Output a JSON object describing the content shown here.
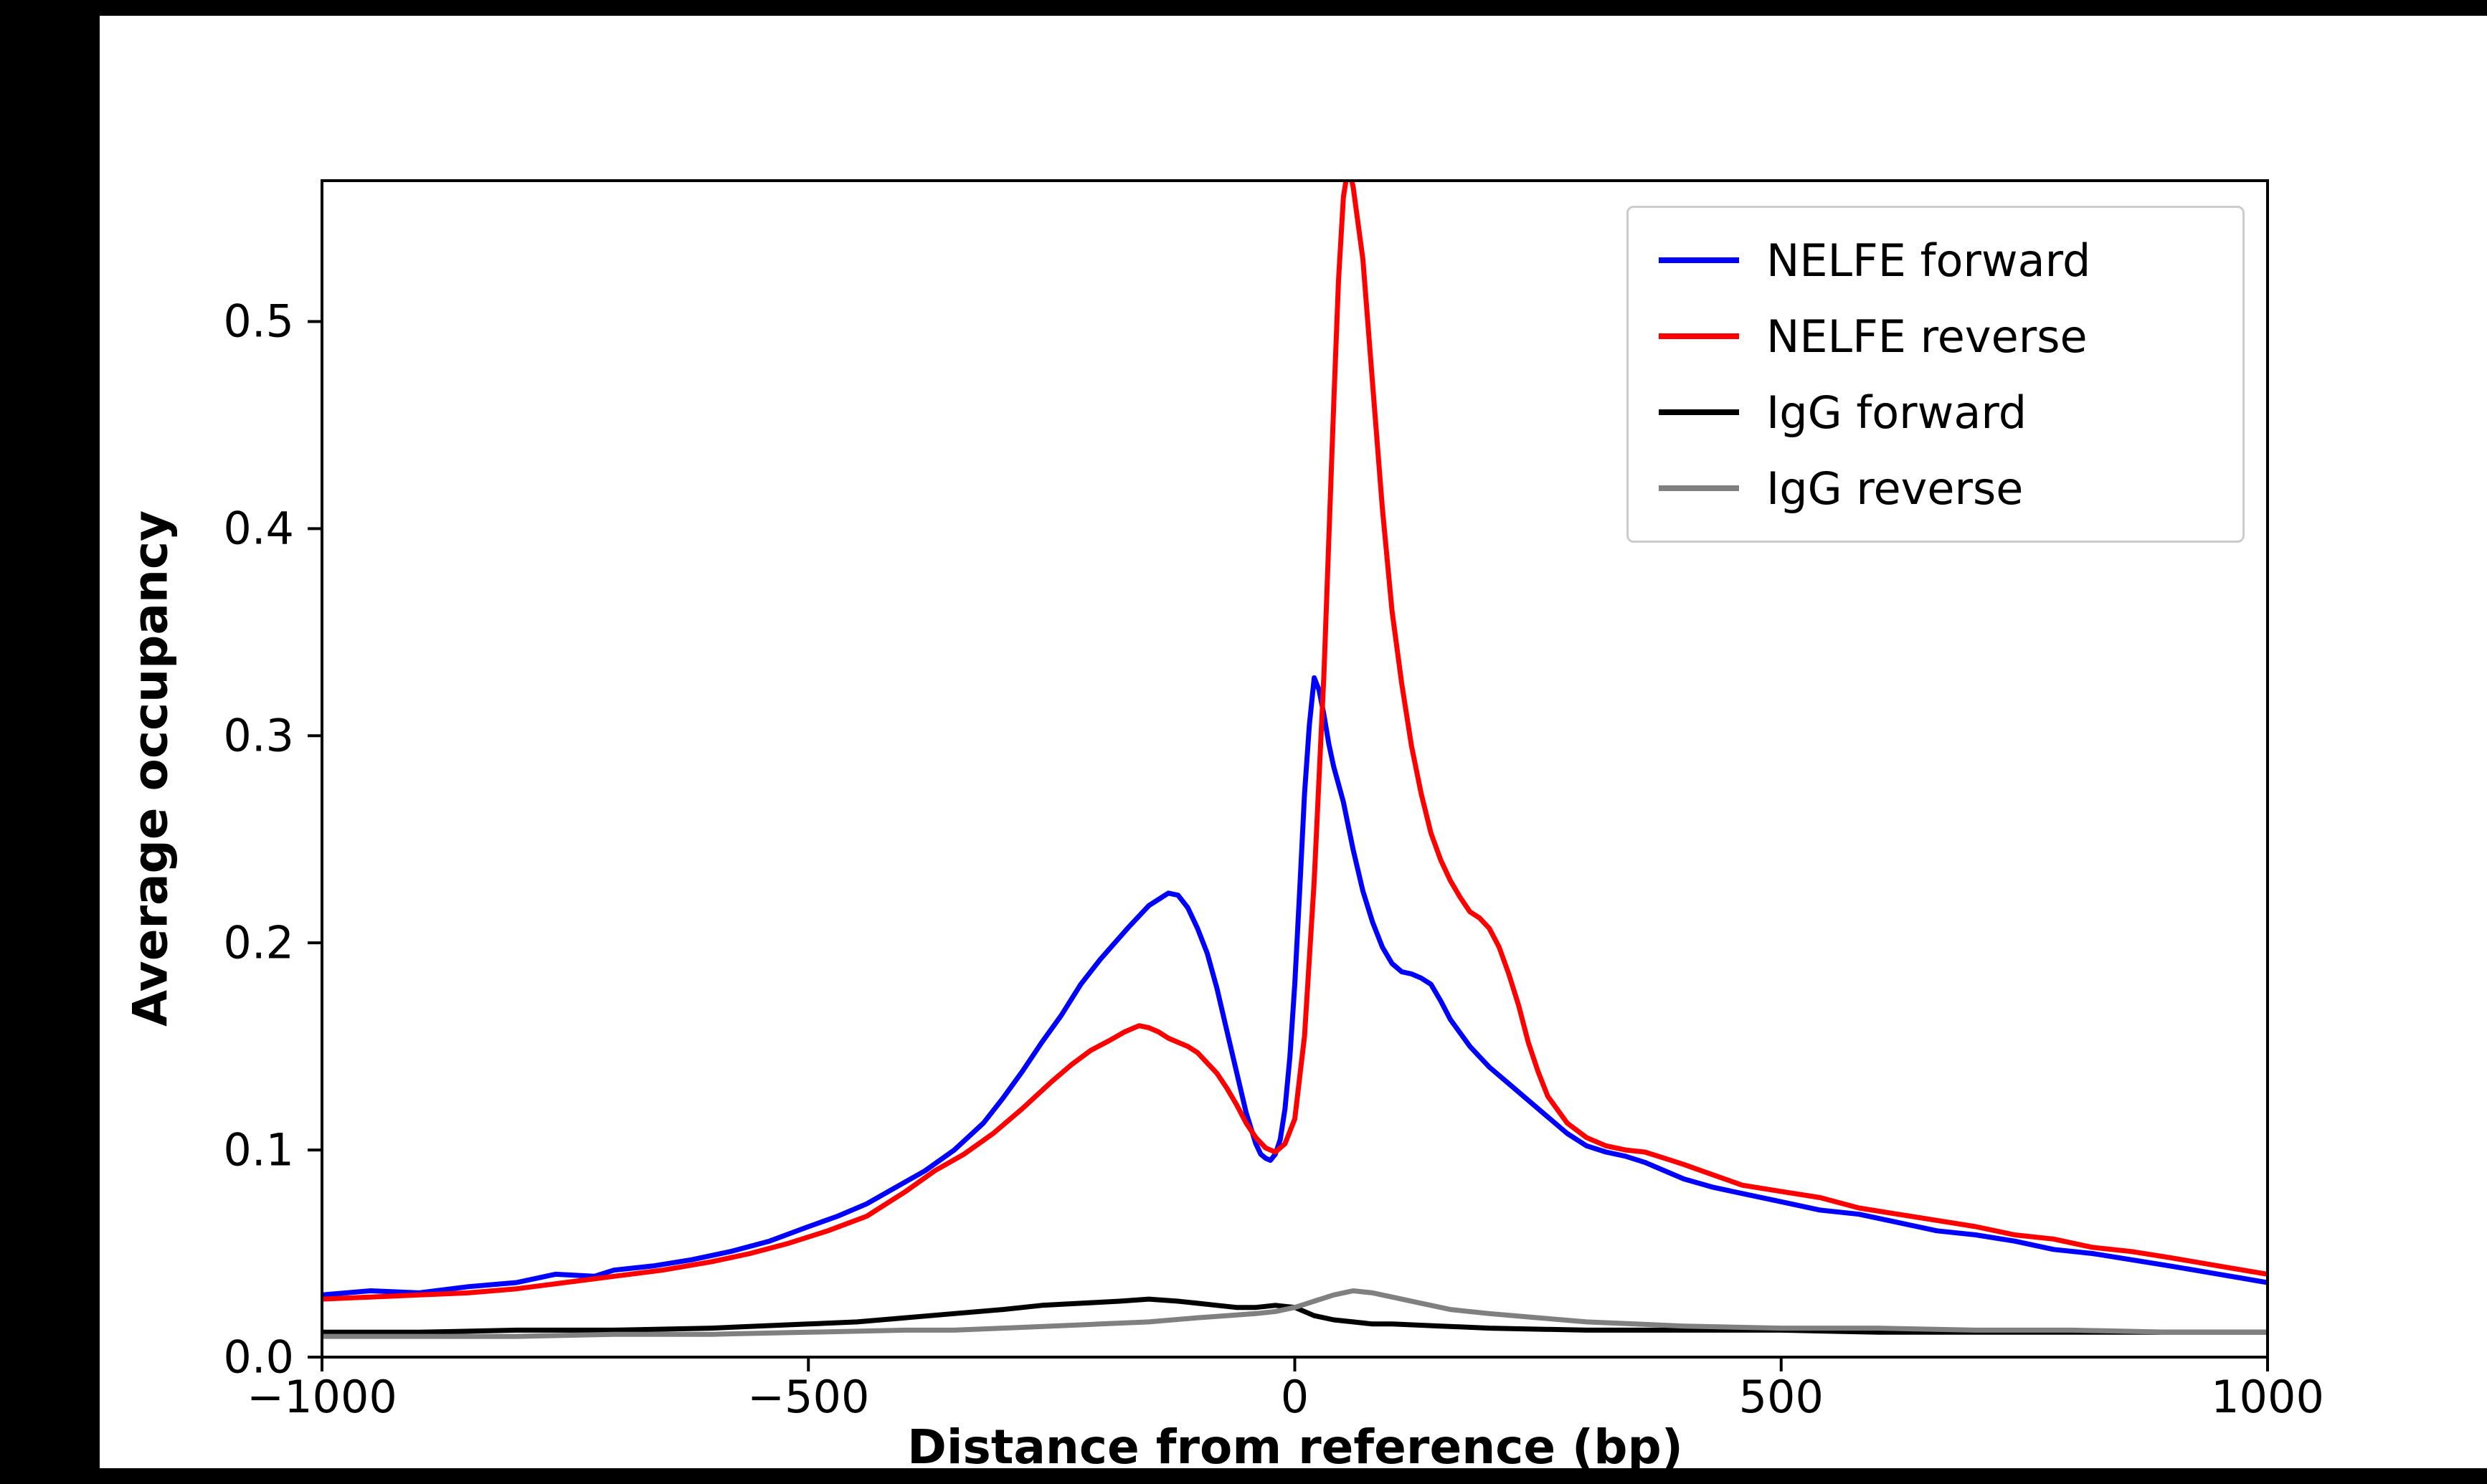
{
  "chart_data": {
    "type": "line",
    "title": "",
    "xlabel": "Distance from reference (bp)",
    "ylabel": "Average occupancy",
    "xlim": [
      -1000,
      1000
    ],
    "ylim": [
      0,
      0.568
    ],
    "grid": false,
    "legend_position": "upper right",
    "xtick_values": [
      -1000,
      -500,
      0,
      500,
      1000
    ],
    "xtick_labels": [
      "−1000",
      "−500",
      "0",
      "500",
      "1000"
    ],
    "ytick_values": [
      0,
      0.1,
      0.2,
      0.3,
      0.4,
      0.5
    ],
    "ytick_labels": [
      "0.0",
      "0.1",
      "0.2",
      "0.3",
      "0.4",
      "0.5"
    ],
    "series": [
      {
        "name": "NELFE forward",
        "color": "#0000ff",
        "x": [
          -1000,
          -950,
          -900,
          -850,
          -800,
          -760,
          -720,
          -700,
          -660,
          -620,
          -580,
          -540,
          -500,
          -470,
          -440,
          -410,
          -380,
          -350,
          -320,
          -300,
          -280,
          -260,
          -240,
          -220,
          -200,
          -185,
          -170,
          -160,
          -150,
          -140,
          -130,
          -120,
          -110,
          -100,
          -90,
          -80,
          -70,
          -60,
          -50,
          -40,
          -35,
          -30,
          -25,
          -20,
          -15,
          -10,
          -5,
          0,
          5,
          10,
          15,
          20,
          25,
          30,
          35,
          40,
          50,
          60,
          70,
          80,
          90,
          100,
          110,
          120,
          130,
          140,
          150,
          160,
          180,
          200,
          220,
          240,
          260,
          280,
          300,
          320,
          340,
          360,
          380,
          400,
          430,
          460,
          500,
          540,
          580,
          620,
          660,
          700,
          740,
          780,
          820,
          860,
          900,
          950,
          1000
        ],
        "y": [
          0.03,
          0.032,
          0.031,
          0.034,
          0.036,
          0.04,
          0.039,
          0.042,
          0.044,
          0.047,
          0.051,
          0.056,
          0.063,
          0.068,
          0.074,
          0.082,
          0.09,
          0.1,
          0.113,
          0.125,
          0.138,
          0.152,
          0.165,
          0.18,
          0.192,
          0.2,
          0.208,
          0.213,
          0.218,
          0.221,
          0.224,
          0.223,
          0.217,
          0.207,
          0.195,
          0.178,
          0.158,
          0.138,
          0.118,
          0.103,
          0.098,
          0.096,
          0.095,
          0.098,
          0.105,
          0.12,
          0.145,
          0.18,
          0.225,
          0.272,
          0.305,
          0.328,
          0.322,
          0.31,
          0.296,
          0.285,
          0.268,
          0.245,
          0.225,
          0.21,
          0.198,
          0.19,
          0.186,
          0.185,
          0.183,
          0.18,
          0.172,
          0.163,
          0.15,
          0.14,
          0.132,
          0.124,
          0.116,
          0.108,
          0.102,
          0.099,
          0.097,
          0.094,
          0.09,
          0.086,
          0.082,
          0.079,
          0.075,
          0.071,
          0.069,
          0.065,
          0.061,
          0.059,
          0.056,
          0.052,
          0.05,
          0.047,
          0.044,
          0.04,
          0.036
        ]
      },
      {
        "name": "NELFE reverse",
        "color": "#ff0000",
        "x": [
          -1000,
          -950,
          -900,
          -850,
          -800,
          -750,
          -700,
          -650,
          -600,
          -560,
          -520,
          -480,
          -440,
          -400,
          -370,
          -340,
          -310,
          -280,
          -250,
          -230,
          -210,
          -190,
          -175,
          -160,
          -150,
          -140,
          -130,
          -120,
          -110,
          -100,
          -90,
          -80,
          -70,
          -60,
          -50,
          -40,
          -30,
          -20,
          -10,
          0,
          10,
          20,
          30,
          40,
          45,
          50,
          55,
          60,
          70,
          80,
          90,
          100,
          110,
          120,
          130,
          140,
          150,
          160,
          170,
          180,
          190,
          200,
          210,
          220,
          230,
          240,
          250,
          260,
          280,
          300,
          320,
          340,
          360,
          380,
          400,
          430,
          460,
          500,
          540,
          580,
          620,
          660,
          700,
          740,
          780,
          820,
          860,
          900,
          950,
          1000
        ],
        "y": [
          0.028,
          0.029,
          0.03,
          0.031,
          0.033,
          0.036,
          0.039,
          0.042,
          0.046,
          0.05,
          0.055,
          0.061,
          0.068,
          0.08,
          0.09,
          0.098,
          0.108,
          0.12,
          0.133,
          0.141,
          0.148,
          0.153,
          0.157,
          0.16,
          0.159,
          0.157,
          0.154,
          0.152,
          0.15,
          0.147,
          0.142,
          0.137,
          0.13,
          0.122,
          0.113,
          0.106,
          0.101,
          0.099,
          0.103,
          0.115,
          0.155,
          0.23,
          0.33,
          0.46,
          0.52,
          0.56,
          0.575,
          0.565,
          0.53,
          0.47,
          0.41,
          0.36,
          0.325,
          0.295,
          0.272,
          0.253,
          0.24,
          0.23,
          0.222,
          0.215,
          0.212,
          0.207,
          0.198,
          0.185,
          0.17,
          0.152,
          0.138,
          0.126,
          0.113,
          0.106,
          0.102,
          0.1,
          0.099,
          0.096,
          0.093,
          0.088,
          0.083,
          0.08,
          0.077,
          0.072,
          0.069,
          0.066,
          0.063,
          0.059,
          0.057,
          0.053,
          0.051,
          0.048,
          0.044,
          0.04
        ]
      },
      {
        "name": "IgG forward",
        "color": "#000000",
        "x": [
          -1000,
          -900,
          -800,
          -700,
          -600,
          -500,
          -450,
          -400,
          -350,
          -300,
          -260,
          -220,
          -180,
          -150,
          -120,
          -100,
          -80,
          -60,
          -40,
          -20,
          0,
          20,
          40,
          60,
          80,
          100,
          150,
          200,
          300,
          400,
          500,
          600,
          700,
          800,
          900,
          1000
        ],
        "y": [
          0.012,
          0.012,
          0.013,
          0.013,
          0.014,
          0.016,
          0.017,
          0.019,
          0.021,
          0.023,
          0.025,
          0.026,
          0.027,
          0.028,
          0.027,
          0.026,
          0.025,
          0.024,
          0.024,
          0.025,
          0.024,
          0.02,
          0.018,
          0.017,
          0.016,
          0.016,
          0.015,
          0.014,
          0.013,
          0.013,
          0.013,
          0.012,
          0.012,
          0.012,
          0.012,
          0.012
        ]
      },
      {
        "name": "IgG reverse",
        "color": "#808080",
        "x": [
          -1000,
          -900,
          -800,
          -700,
          -600,
          -500,
          -400,
          -350,
          -300,
          -250,
          -200,
          -150,
          -100,
          -70,
          -40,
          -20,
          0,
          20,
          40,
          60,
          80,
          100,
          130,
          160,
          200,
          250,
          300,
          350,
          400,
          500,
          600,
          700,
          800,
          900,
          1000
        ],
        "y": [
          0.01,
          0.01,
          0.01,
          0.011,
          0.011,
          0.012,
          0.013,
          0.013,
          0.014,
          0.015,
          0.016,
          0.017,
          0.019,
          0.02,
          0.021,
          0.022,
          0.024,
          0.027,
          0.03,
          0.032,
          0.031,
          0.029,
          0.026,
          0.023,
          0.021,
          0.019,
          0.017,
          0.016,
          0.015,
          0.014,
          0.014,
          0.013,
          0.013,
          0.012,
          0.012
        ]
      }
    ]
  }
}
